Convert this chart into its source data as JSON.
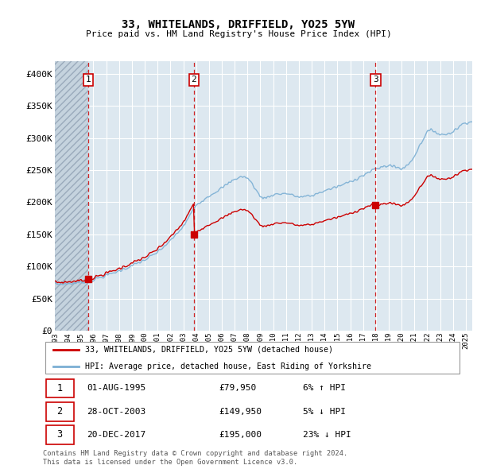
{
  "title": "33, WHITELANDS, DRIFFIELD, YO25 5YW",
  "subtitle": "Price paid vs. HM Land Registry's House Price Index (HPI)",
  "ylim": [
    0,
    420000
  ],
  "yticks": [
    0,
    50000,
    100000,
    150000,
    200000,
    250000,
    300000,
    350000,
    400000
  ],
  "ytick_labels": [
    "£0",
    "£50K",
    "£100K",
    "£150K",
    "£200K",
    "£250K",
    "£300K",
    "£350K",
    "£400K"
  ],
  "xlim_start": 1993.0,
  "xlim_end": 2025.5,
  "t1_x": 1995.58,
  "t1_y": 79950,
  "t2_x": 2003.83,
  "t2_y": 149950,
  "t3_x": 2017.97,
  "t3_y": 195000,
  "transactions": [
    {
      "date_num": 1995.58,
      "price": 79950,
      "label": "1"
    },
    {
      "date_num": 2003.83,
      "price": 149950,
      "label": "2"
    },
    {
      "date_num": 2017.97,
      "price": 195000,
      "label": "3"
    }
  ],
  "legend_line1": "33, WHITELANDS, DRIFFIELD, YO25 5YW (detached house)",
  "legend_line2": "HPI: Average price, detached house, East Riding of Yorkshire",
  "table": [
    {
      "num": "1",
      "date": "01-AUG-1995",
      "price": "£79,950",
      "hpi": "6% ↑ HPI"
    },
    {
      "num": "2",
      "date": "28-OCT-2003",
      "price": "£149,950",
      "hpi": "5% ↓ HPI"
    },
    {
      "num": "3",
      "date": "20-DEC-2017",
      "price": "£195,000",
      "hpi": "23% ↓ HPI"
    }
  ],
  "footer": "Contains HM Land Registry data © Crown copyright and database right 2024.\nThis data is licensed under the Open Government Licence v3.0.",
  "line_color_red": "#cc0000",
  "line_color_blue": "#7bafd4",
  "bg_color": "#dde8f0",
  "grid_color": "#ffffff"
}
